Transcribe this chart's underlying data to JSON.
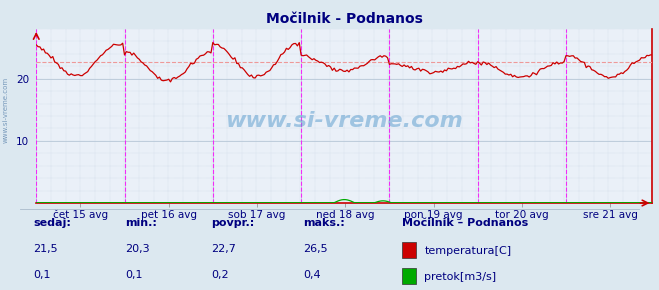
{
  "title": "Močilnik - Podnanos",
  "bg_color": "#dce8f0",
  "plot_bg_color": "#eaf0f8",
  "grid_color": "#b8c8d8",
  "temp_color": "#cc0000",
  "flow_color": "#00aa00",
  "avg_line_color": "#ee9999",
  "axis_color": "#cc0000",
  "x_label_color": "#000080",
  "title_color": "#000080",
  "text_color": "#000080",
  "ylim": [
    0,
    28
  ],
  "yticks": [
    10,
    20
  ],
  "n_points": 336,
  "temp_avg": 22.7,
  "flow_max_scaled": 0.8,
  "x_tick_labels": [
    "čet 15 avg",
    "pet 16 avg",
    "sob 17 avg",
    "ned 18 avg",
    "pon 19 avg",
    "tor 20 avg",
    "sre 21 avg"
  ],
  "legend_title": "Močilnik – Podnanos",
  "legend_items": [
    "temperatura[C]",
    "pretok[m3/s]"
  ],
  "legend_colors": [
    "#cc0000",
    "#00aa00"
  ],
  "stats_labels": [
    "sedaj:",
    "min.:",
    "povpr.:",
    "maks.:"
  ],
  "stats_temp": [
    "21,5",
    "20,3",
    "22,7",
    "26,5"
  ],
  "stats_flow": [
    "0,1",
    "0,1",
    "0,2",
    "0,4"
  ],
  "watermark": "www.si-vreme.com",
  "silogo_colors": [
    "#ffdd00",
    "#00aaff",
    "#003399"
  ]
}
